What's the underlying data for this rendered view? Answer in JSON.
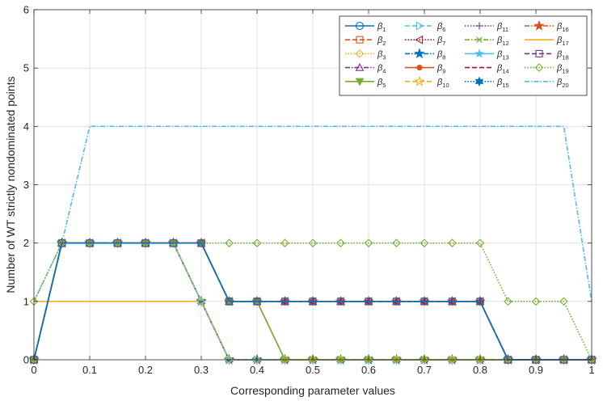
{
  "chart_data": {
    "type": "line",
    "title": "",
    "xlabel": "Corresponding parameter values",
    "ylabel": "Number of WT strictly nondominated points",
    "xlim": [
      0,
      1
    ],
    "ylim": [
      0,
      6
    ],
    "xticks": [
      0,
      0.1,
      0.2,
      0.3,
      0.4,
      0.5,
      0.6,
      0.7,
      0.8,
      0.9,
      1
    ],
    "xtick_labels": [
      "0",
      "0.1",
      "0.2",
      "0.3",
      "0.4",
      "0.5",
      "0.6",
      "0.7",
      "0.8",
      "0.9",
      "1"
    ],
    "yticks": [
      0,
      1,
      2,
      3,
      4,
      5,
      6
    ],
    "ytick_labels": [
      "0",
      "1",
      "2",
      "3",
      "4",
      "5",
      "6"
    ],
    "grid": true,
    "legend_position": "top-right",
    "x": [
      0,
      0.05,
      0.1,
      0.15,
      0.2,
      0.25,
      0.3,
      0.35,
      0.4,
      0.45,
      0.5,
      0.55,
      0.6,
      0.65,
      0.7,
      0.75,
      0.8,
      0.85,
      0.9,
      0.95,
      1
    ],
    "series": [
      {
        "name": "β",
        "sub": "1",
        "color": "#0072BD",
        "dash": "",
        "marker": "circle-open",
        "values": [
          0,
          2,
          2,
          2,
          2,
          2,
          2,
          1,
          1,
          1,
          1,
          1,
          1,
          1,
          1,
          1,
          1,
          0,
          0,
          0,
          0
        ]
      },
      {
        "name": "β",
        "sub": "2",
        "color": "#D95319",
        "dash": "6,3",
        "marker": "square-open",
        "values": [
          0,
          2,
          2,
          2,
          2,
          2,
          2,
          1,
          1,
          1,
          1,
          1,
          1,
          1,
          1,
          1,
          1,
          0,
          0,
          0,
          0
        ]
      },
      {
        "name": "β",
        "sub": "3",
        "color": "#EDB120",
        "dash": "1.5,2",
        "marker": "diamond-open",
        "values": [
          0,
          2,
          2,
          2,
          2,
          2,
          1,
          0,
          0,
          0,
          0,
          0,
          0,
          0,
          0,
          0,
          0,
          0,
          0,
          0,
          0
        ]
      },
      {
        "name": "β",
        "sub": "4",
        "color": "#7E2F8E",
        "dash": "6,2,1.5,2",
        "marker": "triangle-up-open",
        "values": [
          0,
          2,
          2,
          2,
          2,
          2,
          2,
          1,
          1,
          1,
          1,
          1,
          1,
          1,
          1,
          1,
          1,
          0,
          0,
          0,
          0
        ]
      },
      {
        "name": "β",
        "sub": "5",
        "color": "#77AC30",
        "dash": "",
        "marker": "triangle-down-filled",
        "values": [
          0,
          2,
          2,
          2,
          2,
          2,
          2,
          1,
          1,
          0,
          0,
          0,
          0,
          0,
          0,
          0,
          0,
          0,
          0,
          0,
          0
        ]
      },
      {
        "name": "β",
        "sub": "6",
        "color": "#4DBEEE",
        "dash": "6,3",
        "marker": "triangle-right-open",
        "values": [
          0,
          2,
          2,
          2,
          2,
          2,
          1,
          0,
          0,
          0,
          0,
          0,
          0,
          0,
          0,
          0,
          0,
          0,
          0,
          0,
          0
        ]
      },
      {
        "name": "β",
        "sub": "7",
        "color": "#A2142F",
        "dash": "1.5,2",
        "marker": "triangle-left-open",
        "values": [
          0,
          2,
          2,
          2,
          2,
          2,
          2,
          1,
          1,
          1,
          1,
          1,
          1,
          1,
          1,
          1,
          1,
          0,
          0,
          0,
          0
        ]
      },
      {
        "name": "β",
        "sub": "8",
        "color": "#0072BD",
        "dash": "6,2,1.5,2",
        "marker": "star-filled",
        "values": [
          0,
          2,
          2,
          2,
          2,
          2,
          1,
          0,
          0,
          0,
          0,
          0,
          0,
          0,
          0,
          0,
          0,
          0,
          0,
          0,
          0
        ]
      },
      {
        "name": "β",
        "sub": "9",
        "color": "#D95319",
        "dash": "",
        "marker": "dot",
        "values": [
          0,
          2,
          2,
          2,
          2,
          2,
          1,
          0,
          0,
          0,
          0,
          0,
          0,
          0,
          0,
          0,
          0,
          0,
          0,
          0,
          0
        ]
      },
      {
        "name": "β",
        "sub": "10",
        "color": "#EDB120",
        "dash": "6,3",
        "marker": "star-open",
        "values": [
          0,
          2,
          2,
          2,
          2,
          2,
          1,
          0,
          0,
          0,
          0,
          0,
          0,
          0,
          0,
          0,
          0,
          0,
          0,
          0,
          0
        ]
      },
      {
        "name": "β",
        "sub": "11",
        "color": "#7E2F8E",
        "dash": "1.5,2",
        "marker": "plus",
        "values": [
          0,
          2,
          2,
          2,
          2,
          2,
          2,
          1,
          1,
          1,
          1,
          1,
          1,
          1,
          1,
          1,
          1,
          0,
          0,
          0,
          0
        ]
      },
      {
        "name": "β",
        "sub": "12",
        "color": "#77AC30",
        "dash": "6,2,1.5,2",
        "marker": "x",
        "values": [
          0,
          2,
          2,
          2,
          2,
          2,
          2,
          1,
          1,
          0,
          0,
          0,
          0,
          0,
          0,
          0,
          0,
          0,
          0,
          0,
          0
        ]
      },
      {
        "name": "β",
        "sub": "13",
        "color": "#4DBEEE",
        "dash": "",
        "marker": "star-small",
        "values": [
          0,
          2,
          2,
          2,
          2,
          2,
          1,
          0,
          0,
          0,
          0,
          0,
          0,
          0,
          0,
          0,
          0,
          0,
          0,
          0,
          0
        ]
      },
      {
        "name": "β",
        "sub": "14",
        "color": "#A2142F",
        "dash": "6,3",
        "marker": "none",
        "values": [
          0,
          2,
          2,
          2,
          2,
          2,
          2,
          1,
          1,
          1,
          1,
          1,
          1,
          1,
          1,
          1,
          1,
          0,
          0,
          0,
          0
        ]
      },
      {
        "name": "β",
        "sub": "15",
        "color": "#0072BD",
        "dash": "1.5,2",
        "marker": "hexagram",
        "values": [
          0,
          2,
          2,
          2,
          2,
          2,
          1,
          0,
          0,
          0,
          0,
          0,
          0,
          0,
          0,
          0,
          0,
          0,
          0,
          0,
          0
        ]
      },
      {
        "name": "β",
        "sub": "16",
        "color": "#D95319",
        "dash": "6,2,1.5,2",
        "marker": "star-filled",
        "values": [
          0,
          2,
          2,
          2,
          2,
          2,
          2,
          1,
          1,
          1,
          1,
          1,
          1,
          1,
          1,
          1,
          1,
          0,
          0,
          0,
          0
        ]
      },
      {
        "name": "β",
        "sub": "17",
        "color": "#EDB120",
        "dash": "",
        "marker": "none",
        "values": [
          1,
          1,
          1,
          1,
          1,
          1,
          1,
          0,
          0,
          0,
          0,
          0,
          0,
          0,
          0,
          0,
          0,
          0,
          0,
          0,
          0
        ]
      },
      {
        "name": "β",
        "sub": "18",
        "color": "#7E2F8E",
        "dash": "6,3",
        "marker": "square-open",
        "values": [
          0,
          2,
          2,
          2,
          2,
          2,
          2,
          1,
          1,
          1,
          1,
          1,
          1,
          1,
          1,
          1,
          1,
          0,
          0,
          0,
          0
        ]
      },
      {
        "name": "β",
        "sub": "19",
        "color": "#77AC30",
        "dash": "1.5,2",
        "marker": "diamond-open",
        "values": [
          1,
          2,
          2,
          2,
          2,
          2,
          2,
          2,
          2,
          2,
          2,
          2,
          2,
          2,
          2,
          2,
          2,
          1,
          1,
          1,
          0
        ]
      },
      {
        "name": "β",
        "sub": "20",
        "color": "#4DBEEE",
        "dash": "6,2,1.5,2",
        "marker": "none",
        "values": [
          1,
          2,
          4,
          4,
          4,
          4,
          4,
          4,
          4,
          4,
          4,
          4,
          4,
          4,
          4,
          4,
          4,
          4,
          4,
          4,
          1
        ]
      }
    ]
  }
}
